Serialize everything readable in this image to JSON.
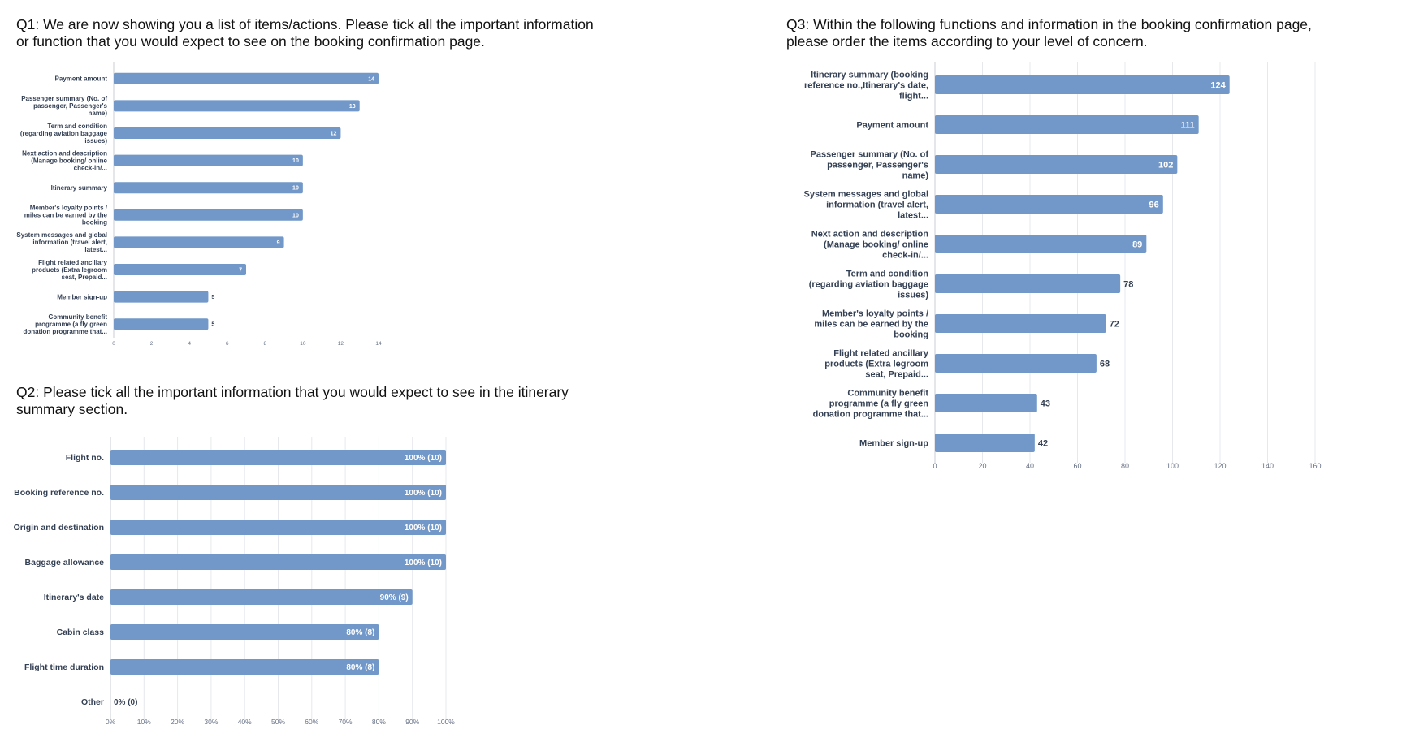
{
  "q1": {
    "title": "Q1: We are now showing you a list of items/actions. Please tick all the important information\n or function that you would expect to see on the booking confirmation page."
  },
  "q2": {
    "title": "Q2: Please tick all the important information that you would expect to see in the itinerary\n  summary section."
  },
  "q3": {
    "title": "Q3:  Within the following functions and information in the booking confirmation page,\n please order the items according to your level of concern."
  },
  "colors": {
    "bar": "#7198c9",
    "grid": "#e6e8ec",
    "axis": "#c9ced6"
  },
  "chart_data": [
    {
      "id": "q1",
      "type": "bar",
      "orientation": "horizontal",
      "categories": [
        "Payment amount",
        "Passenger summary (No. of\npassenger, Passenger's\nname)",
        "Term and condition\n(regarding aviation baggage\nissues)",
        "Next action and description\n(Manage booking/ online\ncheck-in/...",
        "Itinerary summary",
        "Member's loyalty points /\nmiles can be earned by the\nbooking",
        "System messages and global\ninformation (travel alert,\nlatest...",
        "Flight related ancillary\nproducts (Extra legroom\nseat, Prepaid...",
        "Member sign-up",
        "Community benefit\nprogramme (a fly green\ndonation programme that..."
      ],
      "values": [
        14,
        13,
        12,
        10,
        10,
        10,
        9,
        7,
        5,
        5
      ],
      "labels": [
        "14",
        "13",
        "12",
        "10",
        "10",
        "10",
        "9",
        "7",
        "5",
        "5"
      ],
      "xlim": [
        0,
        14
      ],
      "xticks": [
        "0",
        "2",
        "4",
        "6",
        "8",
        "10",
        "12",
        "14"
      ],
      "grid": false
    },
    {
      "id": "q2",
      "type": "bar",
      "orientation": "horizontal",
      "categories": [
        "Flight no.",
        "Booking reference no.",
        "Origin and destination",
        "Baggage allowance",
        "Itinerary's date",
        "Cabin class",
        "Flight time duration",
        "Other"
      ],
      "values": [
        100,
        100,
        100,
        100,
        90,
        80,
        80,
        0
      ],
      "counts": [
        10,
        10,
        10,
        10,
        9,
        8,
        8,
        0
      ],
      "labels": [
        "100% (10)",
        "100% (10)",
        "100% (10)",
        "100% (10)",
        "90% (9)",
        "80% (8)",
        "80% (8)",
        "0% (0)"
      ],
      "xlim": [
        0,
        100
      ],
      "xticks": [
        "0%",
        "10%",
        "20%",
        "30%",
        "40%",
        "50%",
        "60%",
        "70%",
        "80%",
        "90%",
        "100%"
      ],
      "grid": true
    },
    {
      "id": "q3",
      "type": "bar",
      "orientation": "horizontal",
      "categories": [
        "Itinerary summary (booking\nreference no.,Itinerary's date,\nflight...",
        "Payment amount",
        "Passenger summary (No. of\npassenger, Passenger's\nname)",
        "System messages and global\ninformation (travel alert,\nlatest...",
        "Next action and description\n(Manage booking/ online\ncheck-in/...",
        "Term and condition\n(regarding aviation baggage\nissues)",
        "Member's loyalty points /\nmiles can be earned by the\nbooking",
        "Flight related ancillary\nproducts (Extra legroom\nseat, Prepaid...",
        "Community benefit\nprogramme (a fly green\ndonation programme that...",
        "Member sign-up"
      ],
      "values": [
        124,
        111,
        102,
        96,
        89,
        78,
        72,
        68,
        43,
        42
      ],
      "labels": [
        "124",
        "111",
        "102",
        "96",
        "89",
        "78",
        "72",
        "68",
        "43",
        "42"
      ],
      "xlim": [
        0,
        160
      ],
      "xticks": [
        "0",
        "20",
        "40",
        "60",
        "80",
        "100",
        "120",
        "140",
        "160"
      ],
      "grid": true
    }
  ]
}
